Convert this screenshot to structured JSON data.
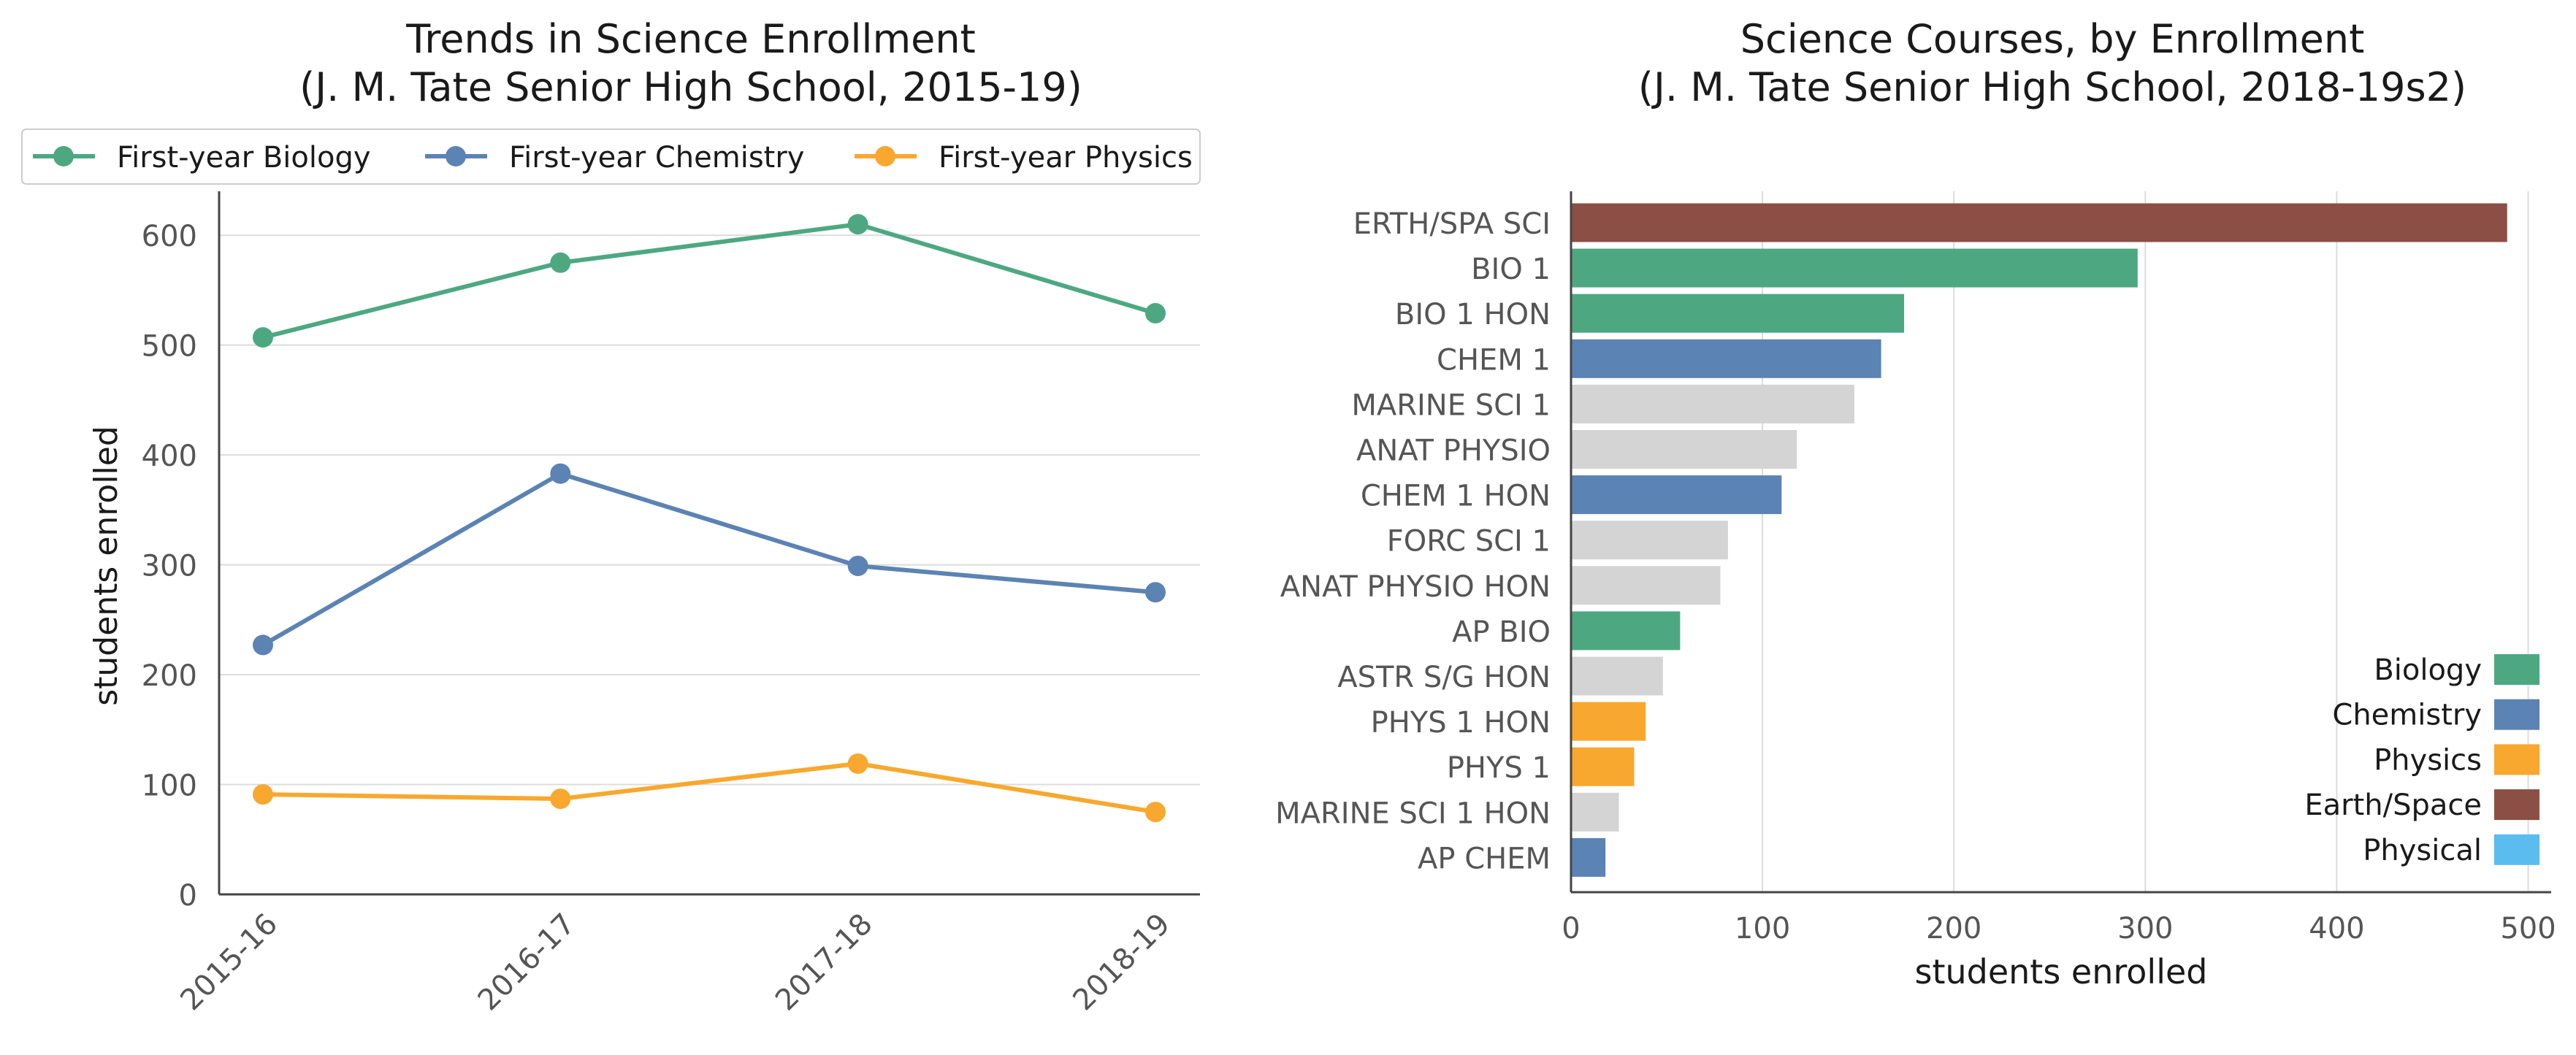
{
  "chart_data": [
    {
      "type": "line",
      "title": "Trends in Science Enrollment",
      "subtitle": "(J. M. Tate Senior High School, 2015-19)",
      "xlabel": "",
      "ylabel": "students enrolled",
      "categories": [
        "2015-16",
        "2016-17",
        "2017-18",
        "2018-19"
      ],
      "ylim": [
        0,
        640
      ],
      "yticks": [
        0,
        100,
        200,
        300,
        400,
        500,
        600
      ],
      "grid": "horizontal",
      "legend_position": "top",
      "series": [
        {
          "name": "First-year Biology",
          "color": "#4da882",
          "values": [
            507,
            575,
            610,
            529
          ]
        },
        {
          "name": "First-year Chemistry",
          "color": "#5b83b3",
          "values": [
            227,
            383,
            299,
            275
          ]
        },
        {
          "name": "First-year Physics",
          "color": "#f8a82e",
          "values": [
            91,
            87,
            119,
            75
          ]
        }
      ]
    },
    {
      "type": "bar",
      "orientation": "horizontal",
      "title": "Science Courses, by Enrollment",
      "subtitle": "(J. M. Tate Senior High School, 2018-19s2)",
      "xlabel": "students enrolled",
      "ylabel": "",
      "xlim": [
        0,
        512
      ],
      "xticks": [
        0,
        100,
        200,
        300,
        400,
        500
      ],
      "grid": "vertical",
      "legend_position": "bottom-right",
      "categories": [
        "ERTH/SPA SCI",
        "BIO 1",
        "BIO 1 HON",
        "CHEM 1",
        "MARINE SCI 1",
        "ANAT PHYSIO",
        "CHEM 1 HON",
        "FORC SCI 1",
        "ANAT PHYSIO HON",
        "AP BIO",
        "ASTR S/G HON",
        "PHYS 1 HON",
        "PHYS 1",
        "MARINE SCI 1 HON",
        "AP CHEM"
      ],
      "values": [
        489,
        296,
        174,
        162,
        148,
        118,
        110,
        82,
        78,
        57,
        48,
        39,
        33,
        25,
        18
      ],
      "bar_groups": [
        "Earth/Space",
        "Biology",
        "Biology",
        "Chemistry",
        "Other",
        "Other",
        "Chemistry",
        "Other",
        "Other",
        "Biology",
        "Other",
        "Physics",
        "Physics",
        "Other",
        "Chemistry"
      ],
      "group_colors": {
        "Biology": "#4da882",
        "Chemistry": "#5b83b3",
        "Physics": "#f8a82e",
        "Earth/Space": "#8b4f45",
        "Physical": "#5bbcef",
        "Other": "#d4d4d4"
      },
      "legend": [
        "Biology",
        "Chemistry",
        "Physics",
        "Earth/Space",
        "Physical"
      ]
    }
  ]
}
